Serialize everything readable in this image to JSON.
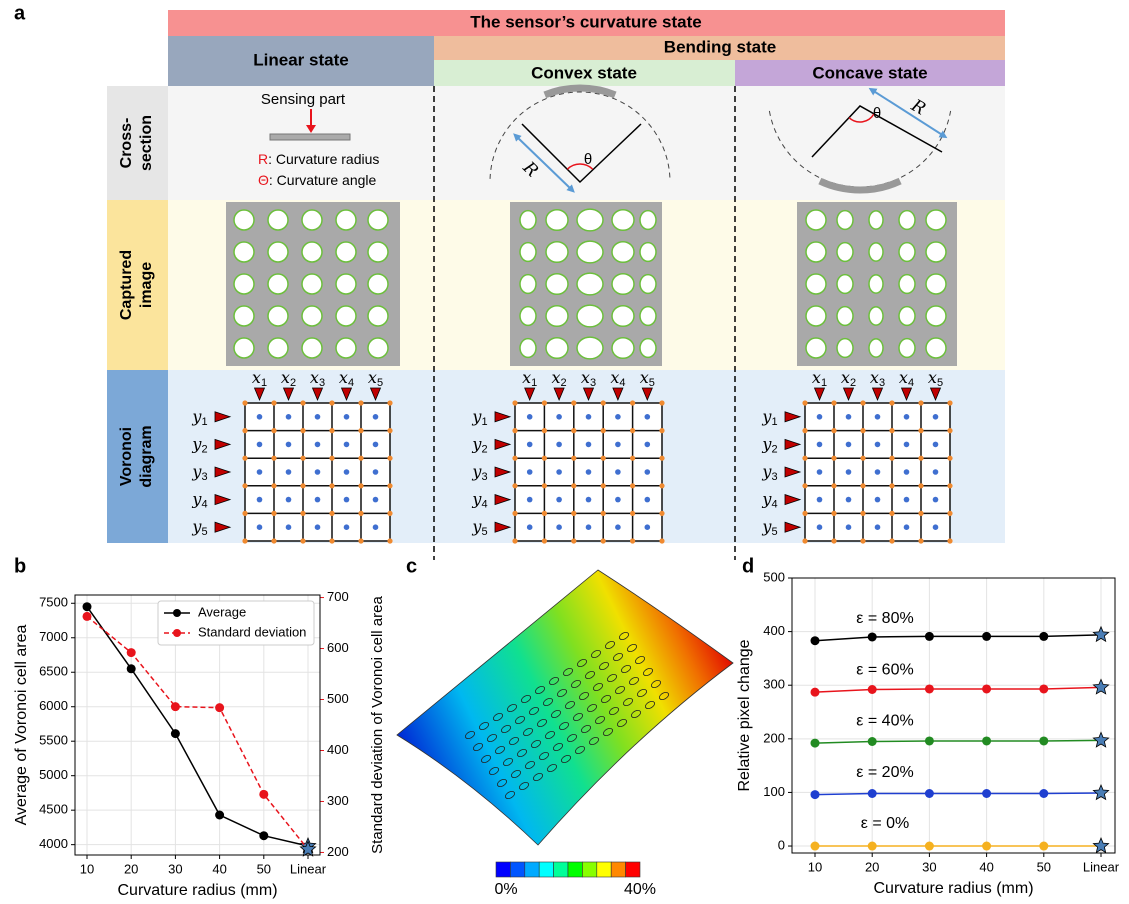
{
  "panel_labels": [
    "a",
    "b",
    "c",
    "d"
  ],
  "figure_a": {
    "title": "The sensor’s curvature state",
    "linear_state": "Linear state",
    "bending_state": "Bending state",
    "convex_state": "Convex state",
    "concave_state": "Concave state",
    "row_labels": [
      [
        "Cross-",
        "section"
      ],
      [
        "Captured",
        "image"
      ],
      [
        "Voronoi",
        "diagram"
      ]
    ],
    "cross_section": {
      "sensing_part": "Sensing part",
      "r_symbol": "R",
      "r_text": ": Curvature radius",
      "theta_symbol": "Θ",
      "theta_text": ": Curvature angle",
      "r_label": "R",
      "theta_label": "θ"
    },
    "voronoi": {
      "x_labels": [
        {
          "base": "x",
          "sub": "1"
        },
        {
          "base": "x",
          "sub": "2"
        },
        {
          "base": "x",
          "sub": "3"
        },
        {
          "base": "x",
          "sub": "4"
        },
        {
          "base": "x",
          "sub": "5"
        }
      ],
      "y_labels": [
        {
          "base": "y",
          "sub": "1"
        },
        {
          "base": "y",
          "sub": "2"
        },
        {
          "base": "y",
          "sub": "3"
        },
        {
          "base": "y",
          "sub": "4"
        },
        {
          "base": "y",
          "sub": "5"
        }
      ]
    }
  },
  "panel_c": {
    "colorbar_labels": [
      "0%",
      "40%"
    ]
  },
  "chart_data": [
    {
      "type": "line",
      "categories": [
        "10",
        "20",
        "30",
        "40",
        "50",
        "Linear"
      ],
      "x_label": "Curvature radius (mm)",
      "y_label": "Average of Voronoi cell area",
      "y2_label": "Standard deviation of Voronoi cell area",
      "series": [
        {
          "name": "Average",
          "color": "#000000",
          "line_style": "solid",
          "values": [
            7450,
            6550,
            5610,
            4430,
            4130,
            3980
          ]
        },
        {
          "name": "Standard deviation",
          "color": "#e8141c",
          "line_style": "dashed",
          "axis": "y2",
          "values": [
            663,
            592,
            486,
            484,
            314,
            206
          ]
        }
      ],
      "ylim": [
        3850,
        7620
      ],
      "yticks": [
        4000,
        4500,
        5000,
        5500,
        6000,
        6500,
        7000,
        7500
      ],
      "y2lim": [
        195,
        705
      ],
      "y2ticks": [
        200,
        300,
        400,
        500,
        600,
        700
      ],
      "grid": true,
      "legend": "upper right",
      "last_point_marker": {
        "shape": "star",
        "color": "#4a7db5"
      }
    },
    {
      "type": "line",
      "categories": [
        "10",
        "20",
        "30",
        "40",
        "50",
        "Linear"
      ],
      "x_label": "Curvature radius (mm)",
      "y_label": "Relative pixel change",
      "series": [
        {
          "name": "ε = 80%",
          "color": "#000000",
          "line_style": "solid",
          "values": [
            383,
            390,
            391,
            391,
            391,
            394
          ]
        },
        {
          "name": "ε = 60%",
          "color": "#e8141c",
          "line_style": "solid",
          "values": [
            287,
            292,
            293,
            293,
            293,
            296
          ]
        },
        {
          "name": "ε = 40%",
          "color": "#228b22",
          "line_style": "solid",
          "values": [
            192,
            195,
            196,
            196,
            196,
            197
          ]
        },
        {
          "name": "ε = 20%",
          "color": "#1f3fd0",
          "line_style": "solid",
          "values": [
            96,
            98,
            98,
            98,
            98,
            99
          ]
        },
        {
          "name": "ε = 0%",
          "color": "#f5b120",
          "line_style": "solid",
          "values": [
            0,
            0,
            0,
            0,
            0,
            0
          ]
        }
      ],
      "ylim": [
        -13,
        500
      ],
      "yticks": [
        0,
        100,
        200,
        300,
        400,
        500
      ],
      "grid": true,
      "last_point_marker": {
        "shape": "star",
        "color": "#4a7db5"
      }
    }
  ]
}
